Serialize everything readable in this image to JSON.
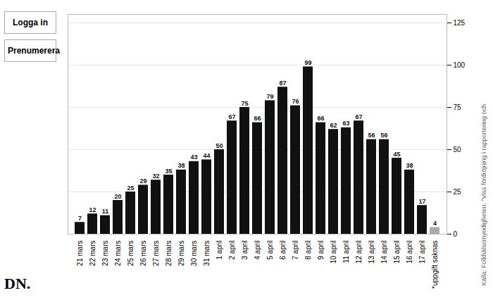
{
  "chart_data": {
    "type": "bar",
    "categories": [
      "21 mars",
      "22 mars",
      "23 mars",
      "24 mars",
      "25 mars",
      "26 mars",
      "27 mars",
      "28 mars",
      "29 mars",
      "30 mars",
      "31 mars",
      "1 april",
      "2 april",
      "3 april",
      "4 april",
      "5 april",
      "6 april",
      "7 april",
      "8 april",
      "9 april",
      "10 april",
      "11 april",
      "12 april",
      "13 april",
      "14 april",
      "15 april",
      "16 april",
      "17 april",
      "*uppgift saknas"
    ],
    "values": [
      7,
      12,
      11,
      20,
      25,
      29,
      32,
      35,
      38,
      43,
      44,
      50,
      67,
      75,
      66,
      79,
      87,
      76,
      99,
      66,
      62,
      63,
      67,
      56,
      56,
      45,
      38,
      17,
      4
    ],
    "colors": [
      "#111111",
      "#111111",
      "#111111",
      "#111111",
      "#111111",
      "#111111",
      "#111111",
      "#111111",
      "#111111",
      "#111111",
      "#111111",
      "#111111",
      "#111111",
      "#111111",
      "#111111",
      "#111111",
      "#111111",
      "#111111",
      "#111111",
      "#111111",
      "#111111",
      "#111111",
      "#111111",
      "#111111",
      "#111111",
      "#111111",
      "#111111",
      "#111111",
      "#aaaaaa"
    ],
    "ylim": [
      0,
      130
    ],
    "yticks": [
      0,
      25,
      50,
      75,
      100,
      125
    ],
    "grid": true,
    "data_labels": true,
    "annotations": [
      "Logga in",
      "Prenumerera",
      "DN.",
      "Källa: Folkhälsomyndigheten. \"Viss fördröjning i rapportering och"
    ]
  }
}
